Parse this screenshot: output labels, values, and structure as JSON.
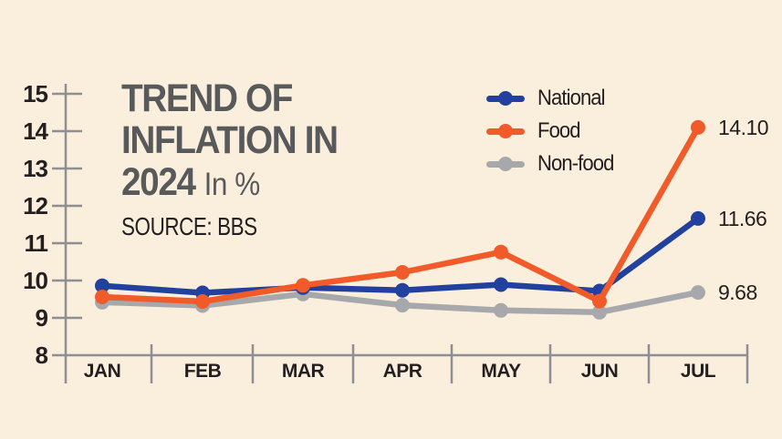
{
  "header": {
    "title_line1": "TREND OF",
    "title_line2": "INFLATION IN",
    "title_line3_bold": "2024",
    "title_line3_suffix": "In %",
    "source": "SOURCE: BBS"
  },
  "colors": {
    "background": "#FAEEDD",
    "title": "#58595B",
    "text": "#231F20",
    "axis": "#8D8F92",
    "national": "#22409D",
    "food": "#F15A29",
    "nonfood": "#A6A8AB"
  },
  "chart_data": {
    "type": "line",
    "title": "TREND OF INFLATION IN 2024",
    "unit": "In %",
    "source": "SOURCE: BBS",
    "categories": [
      "JAN",
      "FEB",
      "MAR",
      "APR",
      "MAY",
      "JUN",
      "JUL"
    ],
    "ylim": [
      8,
      15
    ],
    "yticks": [
      15,
      14,
      13,
      12,
      11,
      10,
      9,
      8
    ],
    "grid": false,
    "legend_position": "top-right",
    "series": [
      {
        "name": "National",
        "color": "#22409D",
        "values": [
          9.86,
          9.67,
          9.81,
          9.74,
          9.89,
          9.72,
          11.66
        ],
        "end_label": "11.66"
      },
      {
        "name": "Food",
        "color": "#F15A29",
        "values": [
          9.56,
          9.44,
          9.87,
          10.22,
          10.76,
          9.45,
          14.1
        ],
        "end_label": "14.10"
      },
      {
        "name": "Non-food",
        "color": "#A6A8AB",
        "values": [
          9.42,
          9.33,
          9.64,
          9.34,
          9.2,
          9.15,
          9.68
        ],
        "end_label": "9.68"
      }
    ]
  }
}
